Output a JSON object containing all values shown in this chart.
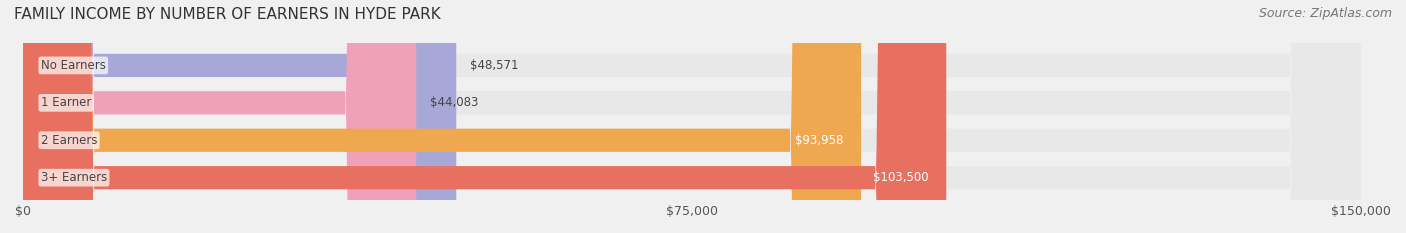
{
  "title": "FAMILY INCOME BY NUMBER OF EARNERS IN HYDE PARK",
  "source": "Source: ZipAtlas.com",
  "categories": [
    "No Earners",
    "1 Earner",
    "2 Earners",
    "3+ Earners"
  ],
  "values": [
    48571,
    44083,
    93958,
    103500
  ],
  "bar_colors": [
    "#a8a8d8",
    "#f0a0b8",
    "#f0a850",
    "#e87060"
  ],
  "bar_edge_colors": [
    "#9090c8",
    "#e090a8",
    "#e09840",
    "#d86050"
  ],
  "label_colors": [
    "#333333",
    "#333333",
    "#ffffff",
    "#ffffff"
  ],
  "value_labels": [
    "$48,571",
    "$44,083",
    "$93,958",
    "$103,500"
  ],
  "xlim": [
    0,
    150000
  ],
  "xticks": [
    0,
    75000,
    150000
  ],
  "xtick_labels": [
    "$0",
    "$75,000",
    "$150,000"
  ],
  "background_color": "#f0f0f0",
  "bar_background_color": "#e8e8e8",
  "title_fontsize": 11,
  "source_fontsize": 9,
  "figsize": [
    14.06,
    2.33
  ],
  "dpi": 100
}
